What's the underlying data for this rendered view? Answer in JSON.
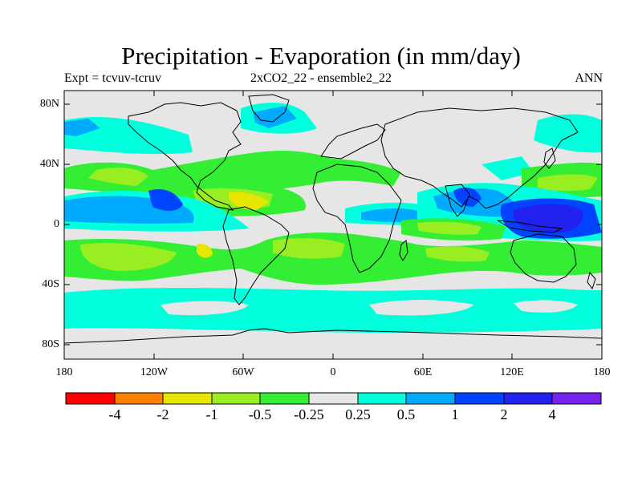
{
  "header": {
    "title": "Precipitation - Evaporation (in mm/day)",
    "left": "Expt = tcvuv-tcruv",
    "center": "2xCO2_22 - ensemble2_22",
    "right": "ANN"
  },
  "axes": {
    "lat_labels": [
      "80N",
      "40N",
      "0",
      "40S",
      "80S"
    ],
    "lon_labels": [
      "180",
      "120W",
      "60W",
      "0",
      "60E",
      "120E",
      "180"
    ]
  },
  "colorbar": {
    "colors": [
      "#ff0000",
      "#ff8000",
      "#e6e600",
      "#99ee22",
      "#33ee33",
      "#e6e6e6",
      "#00ffdd",
      "#00aaff",
      "#0044ff",
      "#2222ee",
      "#7722ee"
    ],
    "labels": [
      "-4",
      "-2",
      "-1",
      "-0.5",
      "-0.25",
      "0.25",
      "0.5",
      "1",
      "2",
      "4"
    ]
  }
}
